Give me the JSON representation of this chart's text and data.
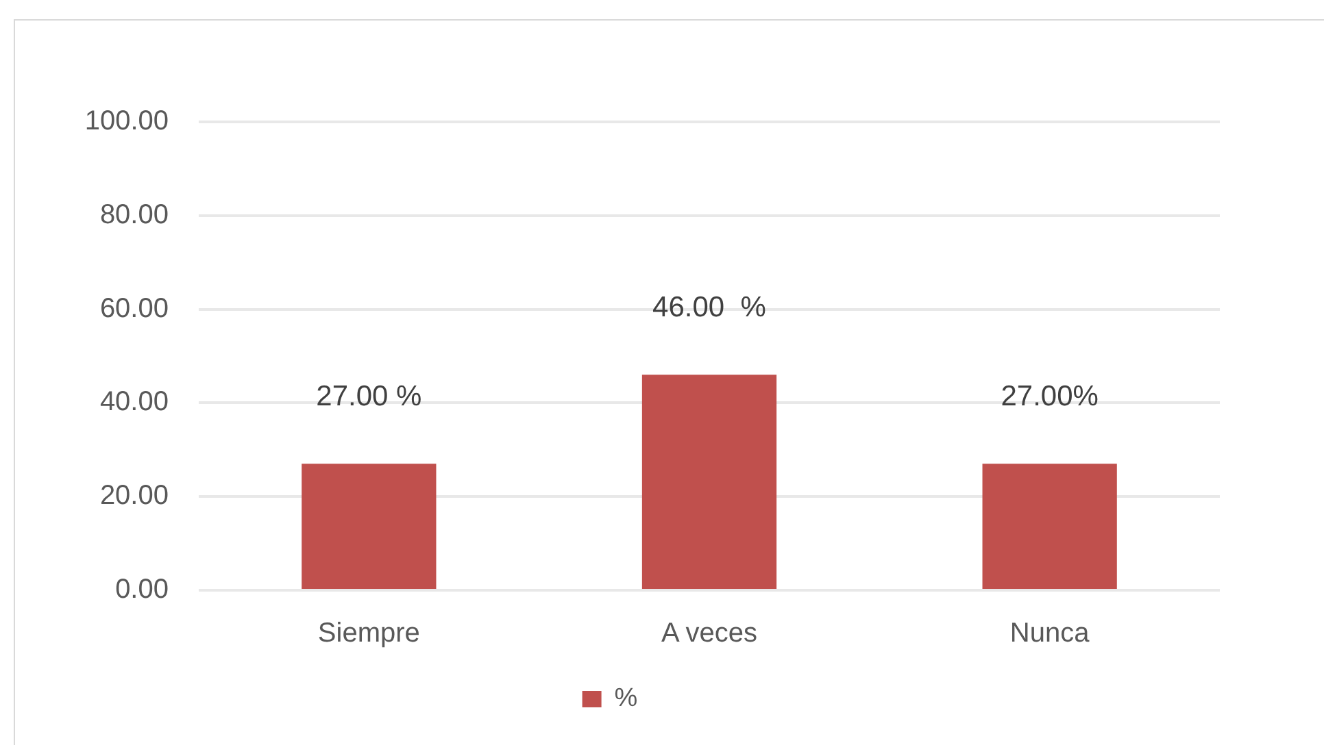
{
  "chart_data": {
    "type": "bar",
    "categories": [
      "Siempre",
      "A veces",
      "Nunca"
    ],
    "series": [
      {
        "name": "%",
        "color": "#c0504d",
        "values": [
          27,
          46,
          27
        ],
        "value_labels": [
          "27.00 %",
          "46.00  %",
          "27.00%"
        ]
      }
    ],
    "ylim": [
      0,
      100
    ],
    "yticks": [
      {
        "value": 0,
        "label": "0.00"
      },
      {
        "value": 20,
        "label": "20.00"
      },
      {
        "value": 40,
        "label": "40.00"
      },
      {
        "value": 60,
        "label": "60.00"
      },
      {
        "value": 80,
        "label": "80.00"
      },
      {
        "value": 100,
        "label": "100.00"
      }
    ],
    "grid": "y",
    "legend": "bottom"
  }
}
